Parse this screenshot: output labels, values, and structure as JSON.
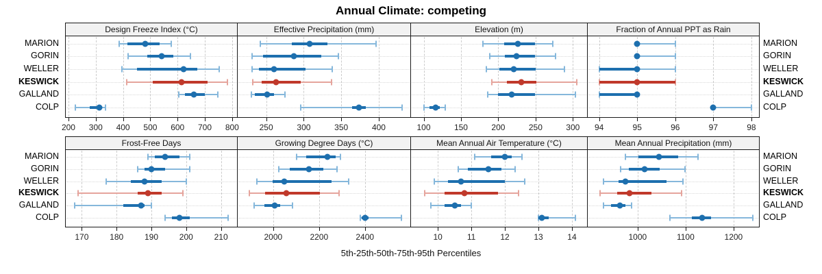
{
  "title": "Annual Climate: competing",
  "caption": "5th-25th-50th-75th-95th Percentiles",
  "sites": [
    "MARION",
    "GORIN",
    "WELLER",
    "KESWICK",
    "GALLAND",
    "COLP"
  ],
  "highlight_site": "KESWICK",
  "colors": {
    "primary": "#1d6fae",
    "primary_light": "#85b7db",
    "highlight": "#c0392b",
    "highlight_light": "#e5a49c",
    "header_bg": "#f2f2f2",
    "panel_border": "#1a1a1a"
  },
  "chart_data": {
    "type": "table",
    "note": "Each panel shows 5th-25th-50th-75th-95th percentiles per site",
    "panels": [
      {
        "label": "Design Freeze Index (°C)",
        "band": 0,
        "domain": [
          190,
          818
        ],
        "ticks": [
          200,
          300,
          400,
          500,
          600,
          700,
          800
        ],
        "series": [
          {
            "site": "MARION",
            "p": [
              386,
              415,
              481,
              534,
              577
            ]
          },
          {
            "site": "GORIN",
            "p": [
              418,
              488,
              541,
              585,
              647
            ]
          },
          {
            "site": "WELLER",
            "p": [
              396,
              452,
              622,
              672,
              752
            ]
          },
          {
            "site": "KESWICK",
            "p": [
              413,
              510,
              614,
              709,
              783
            ]
          },
          {
            "site": "GALLAND",
            "p": [
              604,
              626,
              659,
              701,
              748
            ]
          },
          {
            "site": "COLP",
            "p": [
              225,
              279,
              312,
              324,
              335
            ]
          }
        ]
      },
      {
        "label": "Effective Precipitation (mm)",
        "band": 0,
        "domain": [
          212,
          442
        ],
        "ticks": [
          250,
          300,
          350,
          400
        ],
        "series": [
          {
            "site": "MARION",
            "p": [
              242,
              284,
              308,
              332,
              396
            ]
          },
          {
            "site": "GORIN",
            "p": [
              231,
              246,
              287,
              323,
              346
            ]
          },
          {
            "site": "WELLER",
            "p": [
              231,
              240,
              260,
              302,
              338
            ]
          },
          {
            "site": "KESWICK",
            "p": [
              232,
              244,
              263,
              296,
              337
            ]
          },
          {
            "site": "GALLAND",
            "p": [
              230,
              235,
              251,
              260,
              275
            ]
          },
          {
            "site": "COLP",
            "p": [
              296,
              364,
              374,
              383,
              431
            ]
          }
        ]
      },
      {
        "label": "Elevation (m)",
        "band": 0,
        "domain": [
          83,
          319
        ],
        "ticks": [
          100,
          150,
          200,
          250,
          300
        ],
        "series": [
          {
            "site": "MARION",
            "p": [
              179,
              208,
              226,
              249,
              273
            ]
          },
          {
            "site": "GORIN",
            "p": [
              189,
              209,
              224,
              249,
              277
            ]
          },
          {
            "site": "WELLER",
            "p": [
              184,
              201,
              221,
              250,
              289
            ]
          },
          {
            "site": "KESWICK",
            "p": [
              191,
              212,
              231,
              251,
              305
            ]
          },
          {
            "site": "GALLAND",
            "p": [
              186,
              200,
              218,
              249,
              303
            ]
          },
          {
            "site": "COLP",
            "p": [
              100,
              108,
              116,
              122,
              129
            ]
          }
        ]
      },
      {
        "label": "Fraction of Annual PPT as Rain",
        "band": 0,
        "domain": [
          93.7,
          98.2
        ],
        "ticks": [
          94,
          95,
          96,
          97,
          98
        ],
        "series": [
          {
            "site": "MARION",
            "p": [
              95,
              95,
              95,
              95,
              96
            ]
          },
          {
            "site": "GORIN",
            "p": [
              95,
              95,
              95,
              95,
              96
            ]
          },
          {
            "site": "WELLER",
            "p": [
              94,
              94,
              95,
              95,
              96
            ]
          },
          {
            "site": "KESWICK",
            "p": [
              94,
              94,
              95,
              96,
              96
            ]
          },
          {
            "site": "GALLAND",
            "p": [
              94,
              94,
              95,
              95,
              95
            ]
          },
          {
            "site": "COLP",
            "p": [
              97,
              97,
              97,
              97,
              98
            ]
          }
        ]
      },
      {
        "label": "Frost-Free Days",
        "band": 1,
        "domain": [
          165.4,
          214.6
        ],
        "ticks": [
          170,
          180,
          190,
          200,
          210
        ],
        "series": [
          {
            "site": "MARION",
            "p": [
              189,
              191,
              194,
              198,
              201
            ]
          },
          {
            "site": "GORIN",
            "p": [
              186,
              188,
              190,
              194,
              201
            ]
          },
          {
            "site": "WELLER",
            "p": [
              177,
              184,
              188,
              193,
              200
            ]
          },
          {
            "site": "KESWICK",
            "p": [
              169,
              186,
              189,
              193,
              199
            ]
          },
          {
            "site": "GALLAND",
            "p": [
              168,
              182,
              187,
              188,
              190
            ]
          },
          {
            "site": "COLP",
            "p": [
              194,
              196,
              198,
              201,
              212
            ]
          }
        ]
      },
      {
        "label": "Growing Degree Days (°C)",
        "band": 1,
        "domain": [
          1845,
          2598
        ],
        "ticks": [
          2000,
          2200,
          2400
        ],
        "series": [
          {
            "site": "MARION",
            "p": [
              2101,
              2145,
              2237,
              2271,
              2293
            ]
          },
          {
            "site": "GORIN",
            "p": [
              2025,
              2073,
              2155,
              2218,
              2279
            ]
          },
          {
            "site": "WELLER",
            "p": [
              1930,
              1997,
              2047,
              2254,
              2328
            ]
          },
          {
            "site": "KESWICK",
            "p": [
              1895,
              1966,
              2058,
              2205,
              2286
            ]
          },
          {
            "site": "GALLAND",
            "p": [
              1918,
              1963,
              2005,
              2029,
              2083
            ]
          },
          {
            "site": "COLP",
            "p": [
              2380,
              2385,
              2400,
              2417,
              2560
            ]
          }
        ]
      },
      {
        "label": "Mean Annual Air Temperature (°C)",
        "band": 1,
        "domain": [
          9.2,
          14.45
        ],
        "ticks": [
          10,
          11,
          12,
          13,
          14
        ],
        "series": [
          {
            "site": "MARION",
            "p": [
              11.1,
              11.6,
              12.0,
              12.2,
              12.5
            ]
          },
          {
            "site": "GORIN",
            "p": [
              10.6,
              10.9,
              11.5,
              11.9,
              12.3
            ]
          },
          {
            "site": "WELLER",
            "p": [
              9.9,
              10.3,
              10.7,
              12.0,
              12.6
            ]
          },
          {
            "site": "KESWICK",
            "p": [
              9.6,
              10.2,
              10.8,
              11.8,
              12.4
            ]
          },
          {
            "site": "GALLAND",
            "p": [
              9.8,
              10.2,
              10.5,
              10.7,
              11.0
            ]
          },
          {
            "site": "COLP",
            "p": [
              13.0,
              13.0,
              13.1,
              13.3,
              14.1
            ]
          }
        ]
      },
      {
        "label": "Mean Annual Precipitation (mm)",
        "band": 1,
        "domain": [
          896,
          1253
        ],
        "ticks": [
          1000,
          1100,
          1200
        ],
        "series": [
          {
            "site": "MARION",
            "p": [
              975,
              1002,
              1045,
              1084,
              1126
            ]
          },
          {
            "site": "GORIN",
            "p": [
              965,
              982,
              1014,
              1046,
              1099
            ]
          },
          {
            "site": "WELLER",
            "p": [
              929,
              960,
              975,
              1060,
              1095
            ]
          },
          {
            "site": "KESWICK",
            "p": [
              921,
              958,
              983,
              1029,
              1091
            ]
          },
          {
            "site": "GALLAND",
            "p": [
              929,
              944,
              963,
              975,
              988
            ]
          },
          {
            "site": "COLP",
            "p": [
              1068,
              1113,
              1134,
              1153,
              1240
            ]
          }
        ]
      }
    ]
  }
}
